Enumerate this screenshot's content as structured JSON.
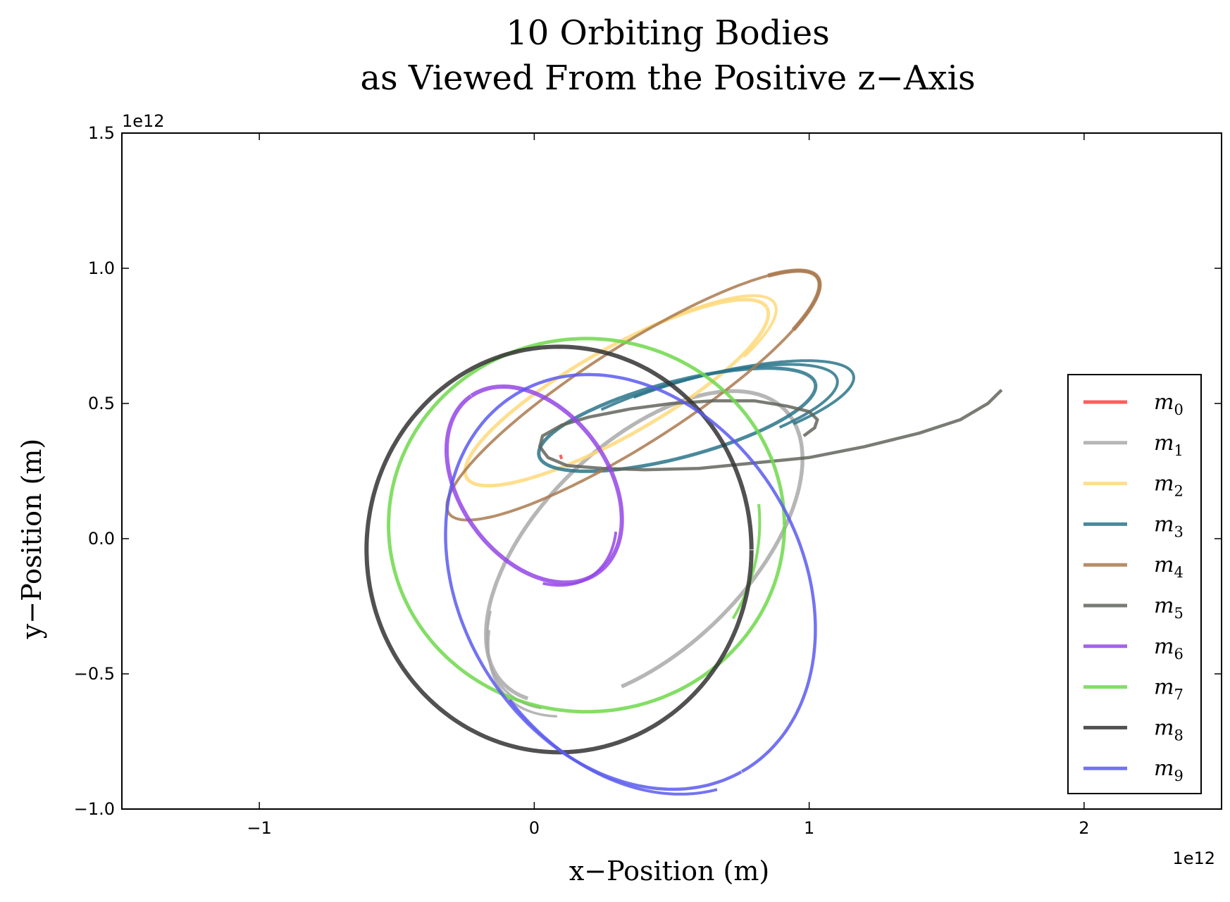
{
  "chart_data": {
    "type": "line",
    "title": [
      "10 Orbiting Bodies",
      "as Viewed From the Positive z−Axis"
    ],
    "xlabel": "x−Position (m)",
    "ylabel": "y−Position (m)",
    "x_offset_label": "1e12",
    "y_offset_label": "1e12",
    "xlim": [
      -1.5,
      2.5
    ],
    "ylim": [
      -1.0,
      1.5
    ],
    "xticks": [
      -1,
      0,
      1,
      2
    ],
    "xtick_labels": [
      "−1",
      "0",
      "1",
      "2"
    ],
    "yticks": [
      -1.0,
      -0.5,
      0.0,
      0.5,
      1.0,
      1.5
    ],
    "ytick_labels": [
      "−1.0",
      "−0.5",
      "0.0",
      "0.5",
      "1.0",
      "1.5"
    ],
    "grid": false,
    "legend_position": "right",
    "series": [
      {
        "name": "m0",
        "color": "#ff4040",
        "width": 4,
        "points": [
          [
            0.095,
            0.31
          ],
          [
            0.098,
            0.3
          ],
          [
            0.1,
            0.295
          ]
        ]
      },
      {
        "name": "m1",
        "color": "#a9a9a9",
        "width": 5.5,
        "ellipse": {
          "cx": 0.4,
          "cy": -0.03,
          "rx": 0.72,
          "ry": 0.38,
          "rot": 45,
          "t0": -2.2,
          "t1": 3.4
        }
      },
      {
        "name": "m1",
        "color": "#a9a9a9",
        "width": 3.5,
        "ellipse": {
          "cx": 0.42,
          "cy": -0.04,
          "rx": 0.74,
          "ry": 0.39,
          "rot": 45,
          "t0": 2.45,
          "t1": 3.5
        }
      },
      {
        "name": "m1",
        "color": "#a9a9a9",
        "width": 3.5,
        "ellipse": {
          "cx": 0.44,
          "cy": -0.05,
          "rx": 0.76,
          "ry": 0.4,
          "rot": 45,
          "t0": 2.55,
          "t1": 3.6
        }
      },
      {
        "name": "m2",
        "color": "#ffd97a",
        "width": 5,
        "ellipse": {
          "cx": 0.3,
          "cy": 0.54,
          "rx": 0.63,
          "ry": 0.16,
          "rot": 30,
          "t0": 0.0,
          "t1": 6.28
        }
      },
      {
        "name": "m2",
        "color": "#ffd97a",
        "width": 4,
        "ellipse": {
          "cx": 0.32,
          "cy": 0.55,
          "rx": 0.64,
          "ry": 0.16,
          "rot": 30,
          "t0": -0.8,
          "t1": 1.3
        }
      },
      {
        "name": "m3",
        "color": "#2a7489",
        "width": 5,
        "ellipse": {
          "cx": 0.52,
          "cy": 0.44,
          "rx": 0.52,
          "ry": 0.14,
          "rot": 15,
          "t0": 0.0,
          "t1": 6.28
        }
      },
      {
        "name": "m3",
        "color": "#2a7489",
        "width": 4,
        "ellipse": {
          "cx": 0.58,
          "cy": 0.45,
          "rx": 0.54,
          "ry": 0.14,
          "rot": 15,
          "t0": -1.0,
          "t1": 2.2
        }
      },
      {
        "name": "m3",
        "color": "#2a7489",
        "width": 4,
        "ellipse": {
          "cx": 0.62,
          "cy": 0.46,
          "rx": 0.56,
          "ry": 0.14,
          "rot": 15,
          "t0": -1.0,
          "t1": 2.0
        }
      },
      {
        "name": "m4",
        "color": "#aa7a50",
        "width": 4,
        "ellipse": {
          "cx": 0.36,
          "cy": 0.53,
          "rx": 0.8,
          "ry": 0.18,
          "rot": 33,
          "t0": 0.0,
          "t1": 6.28
        }
      },
      {
        "name": "m4",
        "color": "#aa7a50",
        "width": 6,
        "ellipse": {
          "cx": 0.36,
          "cy": 0.53,
          "rx": 0.8,
          "ry": 0.18,
          "rot": 33,
          "t0": 5.6,
          "t1": 6.9
        }
      },
      {
        "name": "m5",
        "color": "#62655c",
        "width": 4.5,
        "points": [
          [
            0.98,
            0.38
          ],
          [
            1.02,
            0.41
          ],
          [
            1.03,
            0.44
          ],
          [
            1.0,
            0.47
          ],
          [
            0.92,
            0.49
          ],
          [
            0.8,
            0.51
          ],
          [
            0.65,
            0.51
          ],
          [
            0.5,
            0.5
          ],
          [
            0.35,
            0.48
          ],
          [
            0.2,
            0.45
          ],
          [
            0.1,
            0.42
          ],
          [
            0.03,
            0.38
          ],
          [
            0.02,
            0.34
          ],
          [
            0.05,
            0.3
          ],
          [
            0.12,
            0.27
          ],
          [
            0.25,
            0.26
          ],
          [
            0.4,
            0.255
          ],
          [
            0.6,
            0.26
          ],
          [
            0.8,
            0.28
          ],
          [
            1.0,
            0.3
          ],
          [
            1.2,
            0.34
          ],
          [
            1.4,
            0.39
          ],
          [
            1.55,
            0.44
          ],
          [
            1.65,
            0.5
          ],
          [
            1.7,
            0.55
          ]
        ]
      },
      {
        "name": "m6",
        "color": "#9447e6",
        "width": 6,
        "ellipse": {
          "cx": 0.0,
          "cy": 0.2,
          "rx": 0.4,
          "ry": 0.27,
          "rot": 125,
          "t0": 0.0,
          "t1": 6.28
        }
      },
      {
        "name": "m6",
        "color": "#9447e6",
        "width": 4,
        "ellipse": {
          "cx": -0.02,
          "cy": 0.19,
          "rx": 0.4,
          "ry": 0.27,
          "rot": 125,
          "t0": 2.5,
          "t1": 3.8
        }
      },
      {
        "name": "m7",
        "color": "#6fd84b",
        "width": 5,
        "ellipse": {
          "cx": 0.19,
          "cy": 0.05,
          "rx": 0.72,
          "ry": 0.69,
          "rot": 0,
          "t0": 0.0,
          "t1": 6.28
        }
      },
      {
        "name": "m7",
        "color": "#6fd84b",
        "width": 4,
        "ellipse": {
          "cx": 0.16,
          "cy": 0.06,
          "rx": 0.66,
          "ry": 0.68,
          "rot": 0,
          "t0": -0.55,
          "t1": 0.1
        }
      },
      {
        "name": "m8",
        "color": "#333333",
        "width": 6,
        "ellipse": {
          "cx": 0.09,
          "cy": -0.04,
          "rx": 0.7,
          "ry": 0.75,
          "rot": 0,
          "t0": 0.0,
          "t1": 6.28
        }
      },
      {
        "name": "m9",
        "color": "#5a5aef",
        "width": 4.5,
        "ellipse": {
          "cx": 0.35,
          "cy": -0.16,
          "rx": 0.81,
          "ry": 0.62,
          "rot": -60,
          "t0": 0.0,
          "t1": 6.28
        }
      },
      {
        "name": "m9",
        "color": "#5a5aef",
        "width": 4,
        "ellipse": {
          "cx": 0.37,
          "cy": -0.17,
          "rx": 0.82,
          "ry": 0.62,
          "rot": -60,
          "t0": -1.4,
          "t1": -0.2
        }
      }
    ],
    "legend": [
      {
        "label": "m",
        "sub": "0",
        "color": "#ff4040"
      },
      {
        "label": "m",
        "sub": "1",
        "color": "#a9a9a9"
      },
      {
        "label": "m",
        "sub": "2",
        "color": "#ffd97a"
      },
      {
        "label": "m",
        "sub": "3",
        "color": "#2a7489"
      },
      {
        "label": "m",
        "sub": "4",
        "color": "#aa7a50"
      },
      {
        "label": "m",
        "sub": "5",
        "color": "#62655c"
      },
      {
        "label": "m",
        "sub": "6",
        "color": "#9447e6"
      },
      {
        "label": "m",
        "sub": "7",
        "color": "#6fd84b"
      },
      {
        "label": "m",
        "sub": "8",
        "color": "#333333"
      },
      {
        "label": "m",
        "sub": "9",
        "color": "#5a5aef"
      }
    ]
  }
}
